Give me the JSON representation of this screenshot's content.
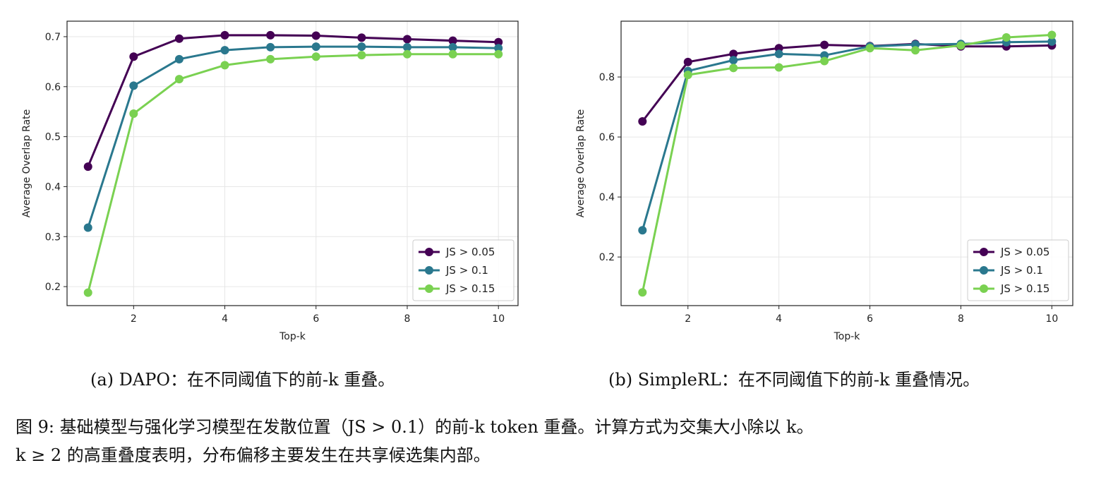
{
  "chart_data": [
    {
      "type": "line",
      "title": "",
      "xlabel": "Top-k",
      "ylabel": "Average Overlap Rate",
      "x": [
        1,
        2,
        3,
        4,
        5,
        6,
        7,
        8,
        9,
        10
      ],
      "xlim": [
        0.54,
        10.43
      ],
      "ylim": [
        0.162,
        0.731
      ],
      "xticks": [
        2,
        4,
        6,
        8,
        10
      ],
      "yticks": [
        0.2,
        0.3,
        0.4,
        0.5,
        0.6,
        0.7
      ],
      "grid": true,
      "legend": "lower-right",
      "series": [
        {
          "name": "JS > 0.05",
          "color": "#440154",
          "values": [
            0.44,
            0.66,
            0.696,
            0.703,
            0.703,
            0.702,
            0.698,
            0.695,
            0.692,
            0.689
          ]
        },
        {
          "name": "JS > 0.1",
          "color": "#2a788e",
          "values": [
            0.318,
            0.602,
            0.655,
            0.673,
            0.679,
            0.68,
            0.68,
            0.679,
            0.679,
            0.677
          ]
        },
        {
          "name": "JS > 0.15",
          "color": "#7ad151",
          "values": [
            0.188,
            0.546,
            0.615,
            0.643,
            0.655,
            0.66,
            0.663,
            0.665,
            0.665,
            0.665
          ]
        }
      ],
      "caption": "(a) DAPO：在不同阈值下的前-k 重叠。"
    },
    {
      "type": "line",
      "title": "",
      "xlabel": "Top-k",
      "ylabel": "Average Overlap Rate",
      "x": [
        1,
        2,
        3,
        4,
        5,
        6,
        7,
        8,
        9,
        10
      ],
      "xlim": [
        0.53,
        10.46
      ],
      "ylim": [
        0.038,
        0.986
      ],
      "xticks": [
        2,
        4,
        6,
        8,
        10
      ],
      "yticks": [
        0.2,
        0.4,
        0.6,
        0.8
      ],
      "grid": true,
      "legend": "lower-right",
      "series": [
        {
          "name": "JS > 0.05",
          "color": "#440154",
          "values": [
            0.652,
            0.85,
            0.877,
            0.896,
            0.907,
            0.903,
            0.91,
            0.902,
            0.902,
            0.905
          ]
        },
        {
          "name": "JS > 0.1",
          "color": "#2a788e",
          "values": [
            0.289,
            0.82,
            0.856,
            0.877,
            0.872,
            0.902,
            0.908,
            0.91,
            0.916,
            0.918
          ]
        },
        {
          "name": "JS > 0.15",
          "color": "#7ad151",
          "values": [
            0.082,
            0.807,
            0.83,
            0.832,
            0.853,
            0.896,
            0.889,
            0.905,
            0.932,
            0.94
          ]
        }
      ],
      "caption": "(b) SimpleRL：在不同阈值下的前-k 重叠情况。"
    }
  ],
  "figure_caption": {
    "line1": "图 9: 基础模型与强化学习模型在发散位置（JS > 0.1）的前-k token 重叠。计算方式为交集大小除以 k。",
    "line2": "k ≥ 2 的高重叠度表明，分布偏移主要发生在共享候选集内部。"
  }
}
